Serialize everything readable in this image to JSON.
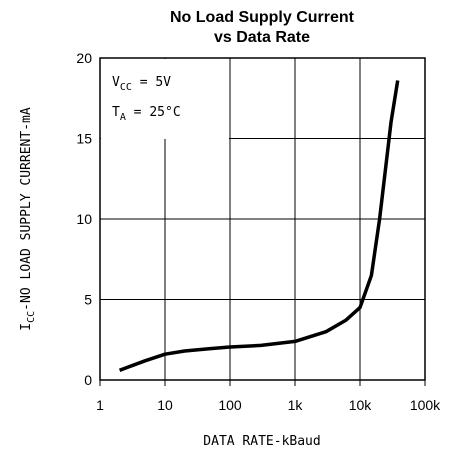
{
  "chart_data": {
    "type": "line",
    "title": [
      "No Load Supply Current",
      "vs Data Rate"
    ],
    "annotations": [
      {
        "main": "V",
        "sub": "CC",
        "rest": " = 5V"
      },
      {
        "main": "T",
        "sub": "A",
        "rest": " = 25°C"
      }
    ],
    "y_label": {
      "main": "I",
      "sub": "CC",
      "rest": "-NO LOAD SUPPLY CURRENT-mA"
    },
    "x_label": "DATA RATE-kBaud",
    "x": [
      2,
      5,
      10,
      20,
      50,
      100,
      300,
      1000,
      3000,
      6000,
      10000,
      15000,
      20000,
      30000,
      38000
    ],
    "values": [
      0.6,
      1.2,
      1.6,
      1.8,
      1.95,
      2.05,
      2.15,
      2.4,
      3.0,
      3.7,
      4.5,
      6.5,
      10,
      16,
      18.6
    ],
    "color": "#000000",
    "xscale": "log",
    "xlim": [
      1,
      100000
    ],
    "xticks": [
      1,
      10,
      100,
      {
        "value": 1000,
        "label": "1k"
      },
      {
        "value": 10000,
        "label": "10k"
      },
      {
        "value": 100000,
        "label": "100k"
      }
    ],
    "ylim": [
      0,
      20
    ],
    "yticks": [
      0,
      5,
      10,
      15,
      20
    ],
    "grid": true
  }
}
